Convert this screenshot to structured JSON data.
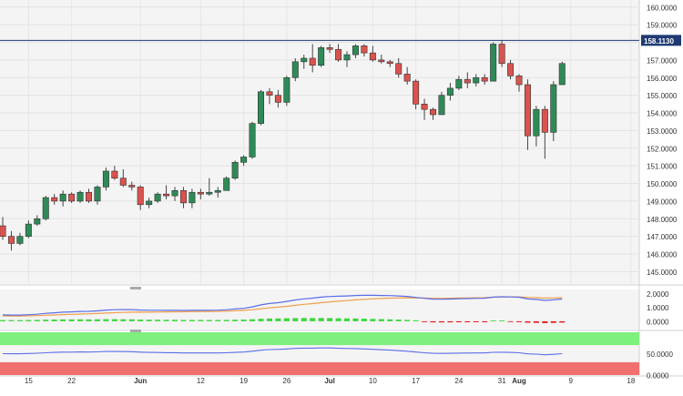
{
  "chart_data": [
    {
      "type": "candlestick",
      "y_axis_side": "right",
      "ylim": [
        144.3,
        160.4
      ],
      "grid": true,
      "price_ticks": [
        "160.0000",
        "159.0000",
        "158.0000",
        "157.0000",
        "156.0000",
        "155.0000",
        "154.0000",
        "153.0000",
        "152.0000",
        "151.0000",
        "150.0000",
        "149.0000",
        "148.0000",
        "147.0000",
        "146.0000",
        "145.0000"
      ],
      "price_tick_values": [
        160,
        159,
        158,
        157,
        156,
        155,
        154,
        153,
        152,
        151,
        150,
        149,
        148,
        147,
        146,
        145
      ],
      "current_price": {
        "label": "158.1130",
        "value": 158.113,
        "color": "#1f3a73"
      },
      "x_ticks": [
        {
          "label": "15",
          "bar": 3
        },
        {
          "label": "22",
          "bar": 8
        },
        {
          "label": "Jun",
          "bar": 16,
          "bold": true
        },
        {
          "label": "12",
          "bar": 23
        },
        {
          "label": "19",
          "bar": 28
        },
        {
          "label": "26",
          "bar": 33
        },
        {
          "label": "Jul",
          "bar": 38,
          "bold": true
        },
        {
          "label": "10",
          "bar": 43
        },
        {
          "label": "17",
          "bar": 48
        },
        {
          "label": "24",
          "bar": 53
        },
        {
          "label": "31",
          "bar": 58
        },
        {
          "label": "Aug",
          "bar": 60,
          "bold": true
        },
        {
          "label": "9",
          "bar": 66
        },
        {
          "label": "18",
          "bar": 73
        }
      ],
      "colors": {
        "up": "#2e8b57",
        "down": "#d9534f"
      },
      "candles": [
        [
          147.6,
          148.1,
          146.8,
          147.0
        ],
        [
          147.0,
          147.3,
          146.2,
          146.6
        ],
        [
          146.6,
          147.2,
          146.5,
          147.0
        ],
        [
          147.0,
          147.9,
          146.9,
          147.7
        ],
        [
          147.7,
          148.2,
          147.6,
          148.0
        ],
        [
          148.0,
          149.3,
          147.9,
          149.2
        ],
        [
          149.2,
          149.4,
          148.8,
          149.0
        ],
        [
          149.0,
          149.6,
          148.7,
          149.4
        ],
        [
          149.4,
          149.5,
          148.9,
          149.0
        ],
        [
          149.0,
          149.6,
          148.9,
          149.5
        ],
        [
          149.5,
          149.7,
          148.9,
          149.0
        ],
        [
          149.0,
          149.9,
          148.8,
          149.8
        ],
        [
          149.8,
          150.9,
          149.6,
          150.7
        ],
        [
          150.7,
          151.0,
          150.2,
          150.3
        ],
        [
          150.3,
          150.8,
          149.8,
          149.9
        ],
        [
          149.9,
          150.1,
          149.6,
          149.8
        ],
        [
          149.8,
          149.9,
          148.5,
          148.8
        ],
        [
          148.8,
          149.2,
          148.6,
          149.0
        ],
        [
          149.0,
          149.5,
          148.9,
          149.4
        ],
        [
          149.4,
          149.9,
          149.1,
          149.3
        ],
        [
          149.3,
          149.8,
          149.0,
          149.6
        ],
        [
          149.6,
          149.8,
          148.6,
          148.9
        ],
        [
          148.9,
          149.7,
          148.6,
          149.5
        ],
        [
          149.5,
          149.7,
          149.1,
          149.4
        ],
        [
          149.4,
          150.3,
          149.3,
          149.5
        ],
        [
          149.5,
          149.8,
          149.2,
          149.6
        ],
        [
          149.6,
          150.4,
          149.6,
          150.3
        ],
        [
          150.3,
          151.3,
          150.2,
          151.2
        ],
        [
          151.2,
          151.6,
          151.0,
          151.5
        ],
        [
          151.5,
          153.5,
          151.4,
          153.4
        ],
        [
          153.4,
          155.3,
          153.3,
          155.2
        ],
        [
          155.2,
          155.4,
          154.5,
          155.0
        ],
        [
          155.0,
          155.3,
          154.3,
          154.6
        ],
        [
          154.6,
          156.1,
          154.4,
          156.0
        ],
        [
          156.0,
          157.1,
          155.8,
          156.9
        ],
        [
          156.9,
          157.3,
          156.5,
          157.1
        ],
        [
          157.1,
          157.9,
          156.3,
          156.7
        ],
        [
          156.7,
          157.8,
          156.6,
          157.7
        ],
        [
          157.7,
          157.9,
          157.4,
          157.6
        ],
        [
          157.6,
          157.9,
          156.9,
          157.0
        ],
        [
          157.0,
          157.5,
          156.6,
          157.3
        ],
        [
          157.3,
          157.9,
          157.1,
          157.8
        ],
        [
          157.8,
          157.9,
          157.2,
          157.4
        ],
        [
          157.4,
          157.8,
          156.9,
          157.0
        ],
        [
          157.0,
          157.3,
          156.8,
          156.9
        ],
        [
          156.9,
          157.0,
          156.6,
          156.8
        ],
        [
          156.8,
          157.1,
          156.0,
          156.2
        ],
        [
          156.2,
          156.6,
          155.6,
          155.8
        ],
        [
          155.8,
          155.9,
          154.2,
          154.5
        ],
        [
          154.5,
          154.8,
          153.6,
          154.2
        ],
        [
          154.2,
          154.3,
          153.6,
          153.9
        ],
        [
          153.9,
          155.2,
          153.9,
          155.0
        ],
        [
          155.0,
          155.7,
          154.7,
          155.4
        ],
        [
          155.4,
          156.1,
          155.3,
          155.9
        ],
        [
          155.9,
          156.3,
          155.4,
          155.7
        ],
        [
          155.7,
          156.2,
          155.5,
          156.0
        ],
        [
          156.0,
          156.2,
          155.6,
          155.8
        ],
        [
          155.8,
          158.0,
          155.8,
          157.9
        ],
        [
          157.9,
          158.1,
          156.6,
          156.8
        ],
        [
          156.8,
          157.0,
          155.9,
          156.1
        ],
        [
          156.1,
          156.2,
          155.2,
          155.6
        ],
        [
          155.6,
          155.9,
          151.9,
          152.7
        ],
        [
          152.7,
          154.4,
          152.1,
          154.2
        ],
        [
          154.2,
          154.4,
          151.4,
          152.9
        ],
        [
          152.9,
          155.8,
          152.4,
          155.6
        ],
        [
          155.6,
          156.9,
          155.6,
          156.8
        ]
      ]
    },
    {
      "type": "line",
      "panel": "indicator-1",
      "ylim": [
        -0.6,
        2.3
      ],
      "y_ticks": [
        "2.0000",
        "1.0000",
        "0.0000"
      ],
      "y_tick_values": [
        2,
        1,
        0
      ]
    },
    {
      "type": "line",
      "panel": "indicator-2",
      "ylim": [
        0,
        100
      ],
      "y_ticks": [
        "50.0000",
        "0.0000"
      ],
      "y_tick_values": [
        50,
        0
      ]
    }
  ]
}
